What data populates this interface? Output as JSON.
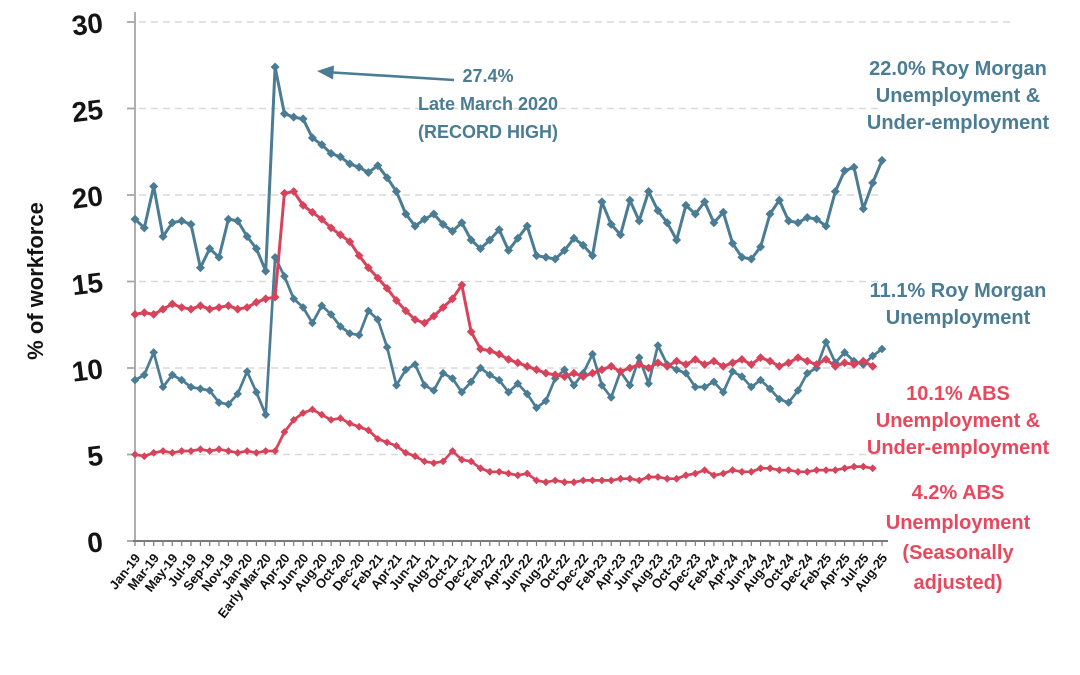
{
  "chart_data": {
    "type": "line",
    "title": "",
    "ylabel": "% of workforce",
    "ylim": [
      0,
      30
    ],
    "yticks": [
      0,
      5,
      10,
      15,
      20,
      25,
      30
    ],
    "grid": "horizontal-dashed",
    "legend_position": "right-outside-labels",
    "n_points": 81,
    "label_every": 2,
    "x_tick_labels": [
      "Jan-19",
      "Mar-19",
      "May-19",
      "Jul-19",
      "Sep-19",
      "Nov-19",
      "Jan-20",
      "Early Mar-20",
      "Apr-20",
      "Jun-20",
      "Aug-20",
      "Oct-20",
      "Dec-20",
      "Feb-21",
      "Apr-21",
      "Jun-21",
      "Aug-21",
      "Oct-21",
      "Dec-21",
      "Feb-22",
      "Apr-22",
      "Jun-22",
      "Aug-22",
      "Oct-22",
      "Dec-22",
      "Feb-23",
      "Apr-23",
      "Jun-23",
      "Aug-23",
      "Oct-23",
      "Dec-23",
      "Feb-24",
      "Apr-24",
      "Jun-24",
      "Aug-24",
      "Oct-24",
      "Dec-24",
      "Feb-25",
      "Apr-25",
      "Jul-25",
      "Aug-25"
    ],
    "colors": {
      "teal": "#4A7C94",
      "red": "#D6435A",
      "label_teal": "#4A7C94",
      "label_red": "#E8485E",
      "grid": "#D9D9D9",
      "axis": "#A6A6A6",
      "text": "#141414"
    },
    "annotation": {
      "lines": [
        "27.4%",
        "Late March 2020",
        "(RECORD HIGH)"
      ],
      "color": "#4A7C94",
      "points_to": "Late Mar-20 spike at 27.4%"
    },
    "series": [
      {
        "name": "Roy Morgan Unemployment & Under-employment",
        "color": "#4A7C94",
        "label_color": "#4A7C94",
        "stroke": 3,
        "marker": 4.5,
        "end_label": [
          "22.0% Roy Morgan",
          "Unemployment &",
          "Under-employment"
        ],
        "latest_value": 22.0,
        "values": [
          18.6,
          18.1,
          20.5,
          17.6,
          18.4,
          18.5,
          18.3,
          15.8,
          16.9,
          16.4,
          18.6,
          18.5,
          17.6,
          16.9,
          15.6,
          27.4,
          24.7,
          24.5,
          24.4,
          23.3,
          22.9,
          22.4,
          22.2,
          21.8,
          21.6,
          21.3,
          21.7,
          21.0,
          20.2,
          18.9,
          18.2,
          18.6,
          18.9,
          18.3,
          17.9,
          18.4,
          17.4,
          16.9,
          17.4,
          18.0,
          16.8,
          17.5,
          18.2,
          16.5,
          16.4,
          16.3,
          16.8,
          17.5,
          17.1,
          16.5,
          19.6,
          18.3,
          17.7,
          19.7,
          18.5,
          20.2,
          19.1,
          18.4,
          17.4,
          19.4,
          18.9,
          19.6,
          18.4,
          19.0,
          17.2,
          16.4,
          16.3,
          17.0,
          18.9,
          19.7,
          18.5,
          18.4,
          18.7,
          18.6,
          18.2,
          20.2,
          21.4,
          21.6,
          19.2,
          20.7,
          22.0
        ]
      },
      {
        "name": "Roy Morgan Unemployment",
        "color": "#4A7C94",
        "label_color": "#4A7C94",
        "stroke": 2.7,
        "marker": 4.3,
        "end_label": [
          "11.1% Roy Morgan",
          "Unemployment"
        ],
        "latest_value": 11.1,
        "values": [
          9.3,
          9.6,
          10.9,
          8.9,
          9.6,
          9.3,
          8.9,
          8.8,
          8.7,
          8.0,
          7.9,
          8.5,
          9.8,
          8.6,
          7.3,
          16.4,
          15.3,
          14.0,
          13.5,
          12.6,
          13.6,
          13.1,
          12.4,
          12.0,
          11.9,
          13.3,
          12.8,
          11.2,
          9.0,
          9.9,
          10.2,
          9.0,
          8.7,
          9.7,
          9.4,
          8.6,
          9.2,
          10.0,
          9.6,
          9.3,
          8.6,
          9.1,
          8.5,
          7.7,
          8.1,
          9.4,
          9.9,
          9.0,
          9.7,
          10.8,
          9.0,
          8.3,
          9.8,
          9.0,
          10.6,
          9.1,
          11.3,
          10.2,
          9.9,
          9.7,
          8.9,
          8.9,
          9.2,
          8.6,
          9.8,
          9.5,
          8.9,
          9.3,
          8.8,
          8.2,
          8.0,
          8.7,
          9.7,
          10.0,
          11.5,
          10.3,
          10.9,
          10.4,
          10.2,
          10.7,
          11.1
        ]
      },
      {
        "name": "ABS Unemployment & Under-employment",
        "color": "#D6435A",
        "label_color": "#E8485E",
        "stroke": 3,
        "marker": 4.4,
        "end_label": [
          "10.1% ABS",
          "Unemployment &",
          "Under-employment"
        ],
        "latest_value": 10.1,
        "values": [
          13.1,
          13.2,
          13.1,
          13.4,
          13.7,
          13.5,
          13.4,
          13.6,
          13.4,
          13.5,
          13.6,
          13.4,
          13.5,
          13.8,
          14.0,
          14.1,
          20.1,
          20.2,
          19.4,
          19.0,
          18.6,
          18.1,
          17.7,
          17.3,
          16.5,
          15.8,
          15.2,
          14.6,
          13.9,
          13.3,
          12.8,
          12.6,
          13.0,
          13.5,
          14.0,
          14.8,
          12.1,
          11.1,
          11.0,
          10.8,
          10.5,
          10.3,
          10.1,
          9.9,
          9.7,
          9.6,
          9.5,
          9.7,
          9.5,
          9.7,
          9.9,
          10.1,
          9.8,
          10.0,
          10.2,
          10.0,
          10.3,
          10.1,
          10.4,
          10.2,
          10.5,
          10.2,
          10.4,
          10.1,
          10.3,
          10.5,
          10.2,
          10.6,
          10.4,
          10.1,
          10.3,
          10.6,
          10.4,
          10.2,
          10.5,
          10.1,
          10.3,
          10.2,
          10.4,
          10.1,
          null
        ]
      },
      {
        "name": "ABS Unemployment (Seasonally adjusted)",
        "color": "#D6435A",
        "label_color": "#E8485E",
        "stroke": 2.7,
        "marker": 3.9,
        "end_label": [
          "4.2% ABS",
          "Unemployment",
          "(Seasonally",
          "adjusted)"
        ],
        "latest_value": 4.2,
        "values": [
          5.0,
          4.9,
          5.1,
          5.2,
          5.1,
          5.2,
          5.2,
          5.3,
          5.2,
          5.3,
          5.2,
          5.1,
          5.2,
          5.1,
          5.2,
          5.2,
          6.3,
          7.0,
          7.4,
          7.6,
          7.3,
          7.0,
          7.1,
          6.8,
          6.6,
          6.4,
          5.9,
          5.7,
          5.5,
          5.1,
          4.9,
          4.6,
          4.5,
          4.6,
          5.2,
          4.7,
          4.6,
          4.2,
          4.0,
          4.0,
          3.9,
          3.8,
          3.9,
          3.5,
          3.4,
          3.5,
          3.4,
          3.4,
          3.5,
          3.5,
          3.5,
          3.5,
          3.6,
          3.6,
          3.5,
          3.7,
          3.7,
          3.6,
          3.6,
          3.8,
          3.9,
          4.1,
          3.8,
          3.9,
          4.1,
          4.0,
          4.0,
          4.2,
          4.2,
          4.1,
          4.1,
          4.0,
          4.0,
          4.1,
          4.1,
          4.1,
          4.2,
          4.3,
          4.3,
          4.2,
          null
        ]
      }
    ]
  }
}
